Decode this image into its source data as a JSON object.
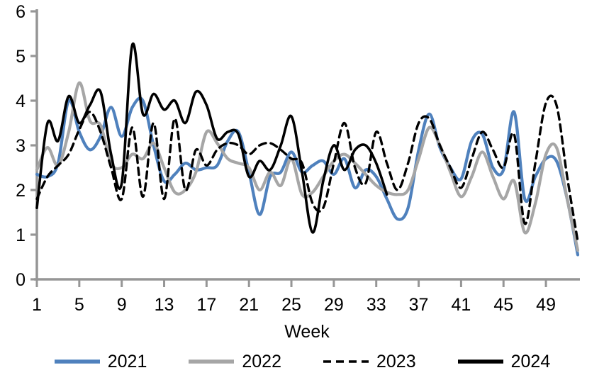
{
  "chart": {
    "axis_color": "#969696",
    "text_color": "#000000",
    "tick_font_px": 25,
    "x_tick_weeks": [
      1,
      5,
      9,
      13,
      17,
      21,
      25,
      29,
      33,
      37,
      41,
      45,
      49
    ],
    "x_tick_labels": [
      "1",
      "5",
      "9",
      "13",
      "17",
      "21",
      "25",
      "29",
      "33",
      "37",
      "41",
      "45",
      "49"
    ],
    "y_tick_values": [
      0,
      1,
      2,
      3,
      4,
      5,
      6
    ],
    "y_tick_labels": [
      "0",
      "1",
      "2",
      "3",
      "4",
      "5",
      "6"
    ]
  },
  "chart_data": {
    "type": "line",
    "title": "",
    "xlabel": "Week",
    "ylabel": "",
    "xlim": [
      1,
      53
    ],
    "ylim": [
      0,
      6
    ],
    "grid": false,
    "legend_position": "bottom",
    "smoothed": true,
    "x": [
      1,
      2,
      3,
      4,
      5,
      6,
      7,
      8,
      9,
      10,
      11,
      12,
      13,
      14,
      15,
      16,
      17,
      18,
      19,
      20,
      21,
      22,
      23,
      24,
      25,
      26,
      27,
      28,
      29,
      30,
      31,
      32,
      33,
      34,
      35,
      36,
      37,
      38,
      39,
      40,
      41,
      42,
      43,
      44,
      45,
      46,
      47,
      48,
      49,
      50,
      51,
      52
    ],
    "series": [
      {
        "name": "2021",
        "color": "#4F81BD",
        "style": "solid",
        "stroke_width": 4.2,
        "start_week": 1,
        "values": [
          2.35,
          2.3,
          2.6,
          4.0,
          3.3,
          2.9,
          3.2,
          3.85,
          3.2,
          3.85,
          4.0,
          3.0,
          2.2,
          2.35,
          2.6,
          2.45,
          2.5,
          2.55,
          3.1,
          3.3,
          2.4,
          1.45,
          2.3,
          2.4,
          2.85,
          2.4,
          2.55,
          2.65,
          2.35,
          2.7,
          2.05,
          2.45,
          2.3,
          1.8,
          1.35,
          1.6,
          2.9,
          3.7,
          2.95,
          2.5,
          2.25,
          3.1,
          3.25,
          2.5,
          2.45,
          3.75,
          1.8,
          2.3,
          2.7,
          2.65,
          1.8,
          0.55
        ]
      },
      {
        "name": "2022",
        "color": "#A6A6A6",
        "style": "solid",
        "stroke_width": 4.2,
        "start_week": 1,
        "values": [
          2.45,
          2.95,
          2.55,
          3.3,
          4.4,
          3.55,
          3.45,
          2.6,
          2.5,
          2.8,
          2.7,
          3.05,
          2.5,
          1.95,
          2.0,
          2.4,
          3.3,
          3.05,
          2.7,
          2.6,
          2.5,
          2.0,
          2.4,
          2.1,
          2.7,
          1.9,
          1.95,
          2.3,
          2.65,
          2.8,
          2.6,
          2.35,
          2.1,
          1.95,
          1.9,
          2.0,
          2.7,
          3.4,
          3.0,
          2.4,
          1.85,
          2.3,
          2.85,
          2.3,
          1.8,
          2.2,
          1.05,
          1.7,
          2.8,
          2.95,
          1.8,
          0.65
        ]
      },
      {
        "name": "2023",
        "color": "#000000",
        "style": "dashed",
        "stroke_width": 3.4,
        "start_week": 1,
        "values": [
          1.8,
          2.3,
          2.55,
          2.8,
          3.35,
          3.75,
          3.3,
          2.5,
          1.8,
          3.4,
          1.85,
          3.5,
          1.8,
          3.6,
          2.0,
          2.9,
          2.55,
          2.9,
          3.05,
          3.0,
          2.8,
          3.0,
          3.05,
          2.9,
          2.7,
          2.6,
          1.7,
          1.6,
          2.6,
          3.5,
          2.5,
          2.15,
          3.3,
          2.6,
          2.0,
          2.6,
          3.5,
          3.6,
          3.0,
          2.5,
          2.05,
          2.7,
          3.3,
          2.9,
          2.5,
          3.25,
          1.25,
          2.6,
          3.95,
          3.9,
          2.3,
          0.85
        ]
      },
      {
        "name": "2024",
        "color": "#000000",
        "style": "solid",
        "stroke_width": 3.6,
        "start_week": 1,
        "values": [
          1.6,
          3.5,
          3.1,
          4.1,
          3.5,
          3.9,
          4.2,
          2.8,
          2.15,
          5.25,
          3.7,
          4.15,
          3.8,
          4.0,
          3.5,
          4.2,
          3.9,
          3.15,
          3.3,
          3.25,
          2.3,
          2.65,
          2.45,
          3.0,
          3.65,
          2.4,
          1.05,
          2.2,
          3.0,
          2.45,
          2.9,
          3.0,
          2.6,
          1.9
        ]
      }
    ]
  },
  "legend": {
    "items": [
      "2021",
      "2022",
      "2023",
      "2024"
    ]
  }
}
